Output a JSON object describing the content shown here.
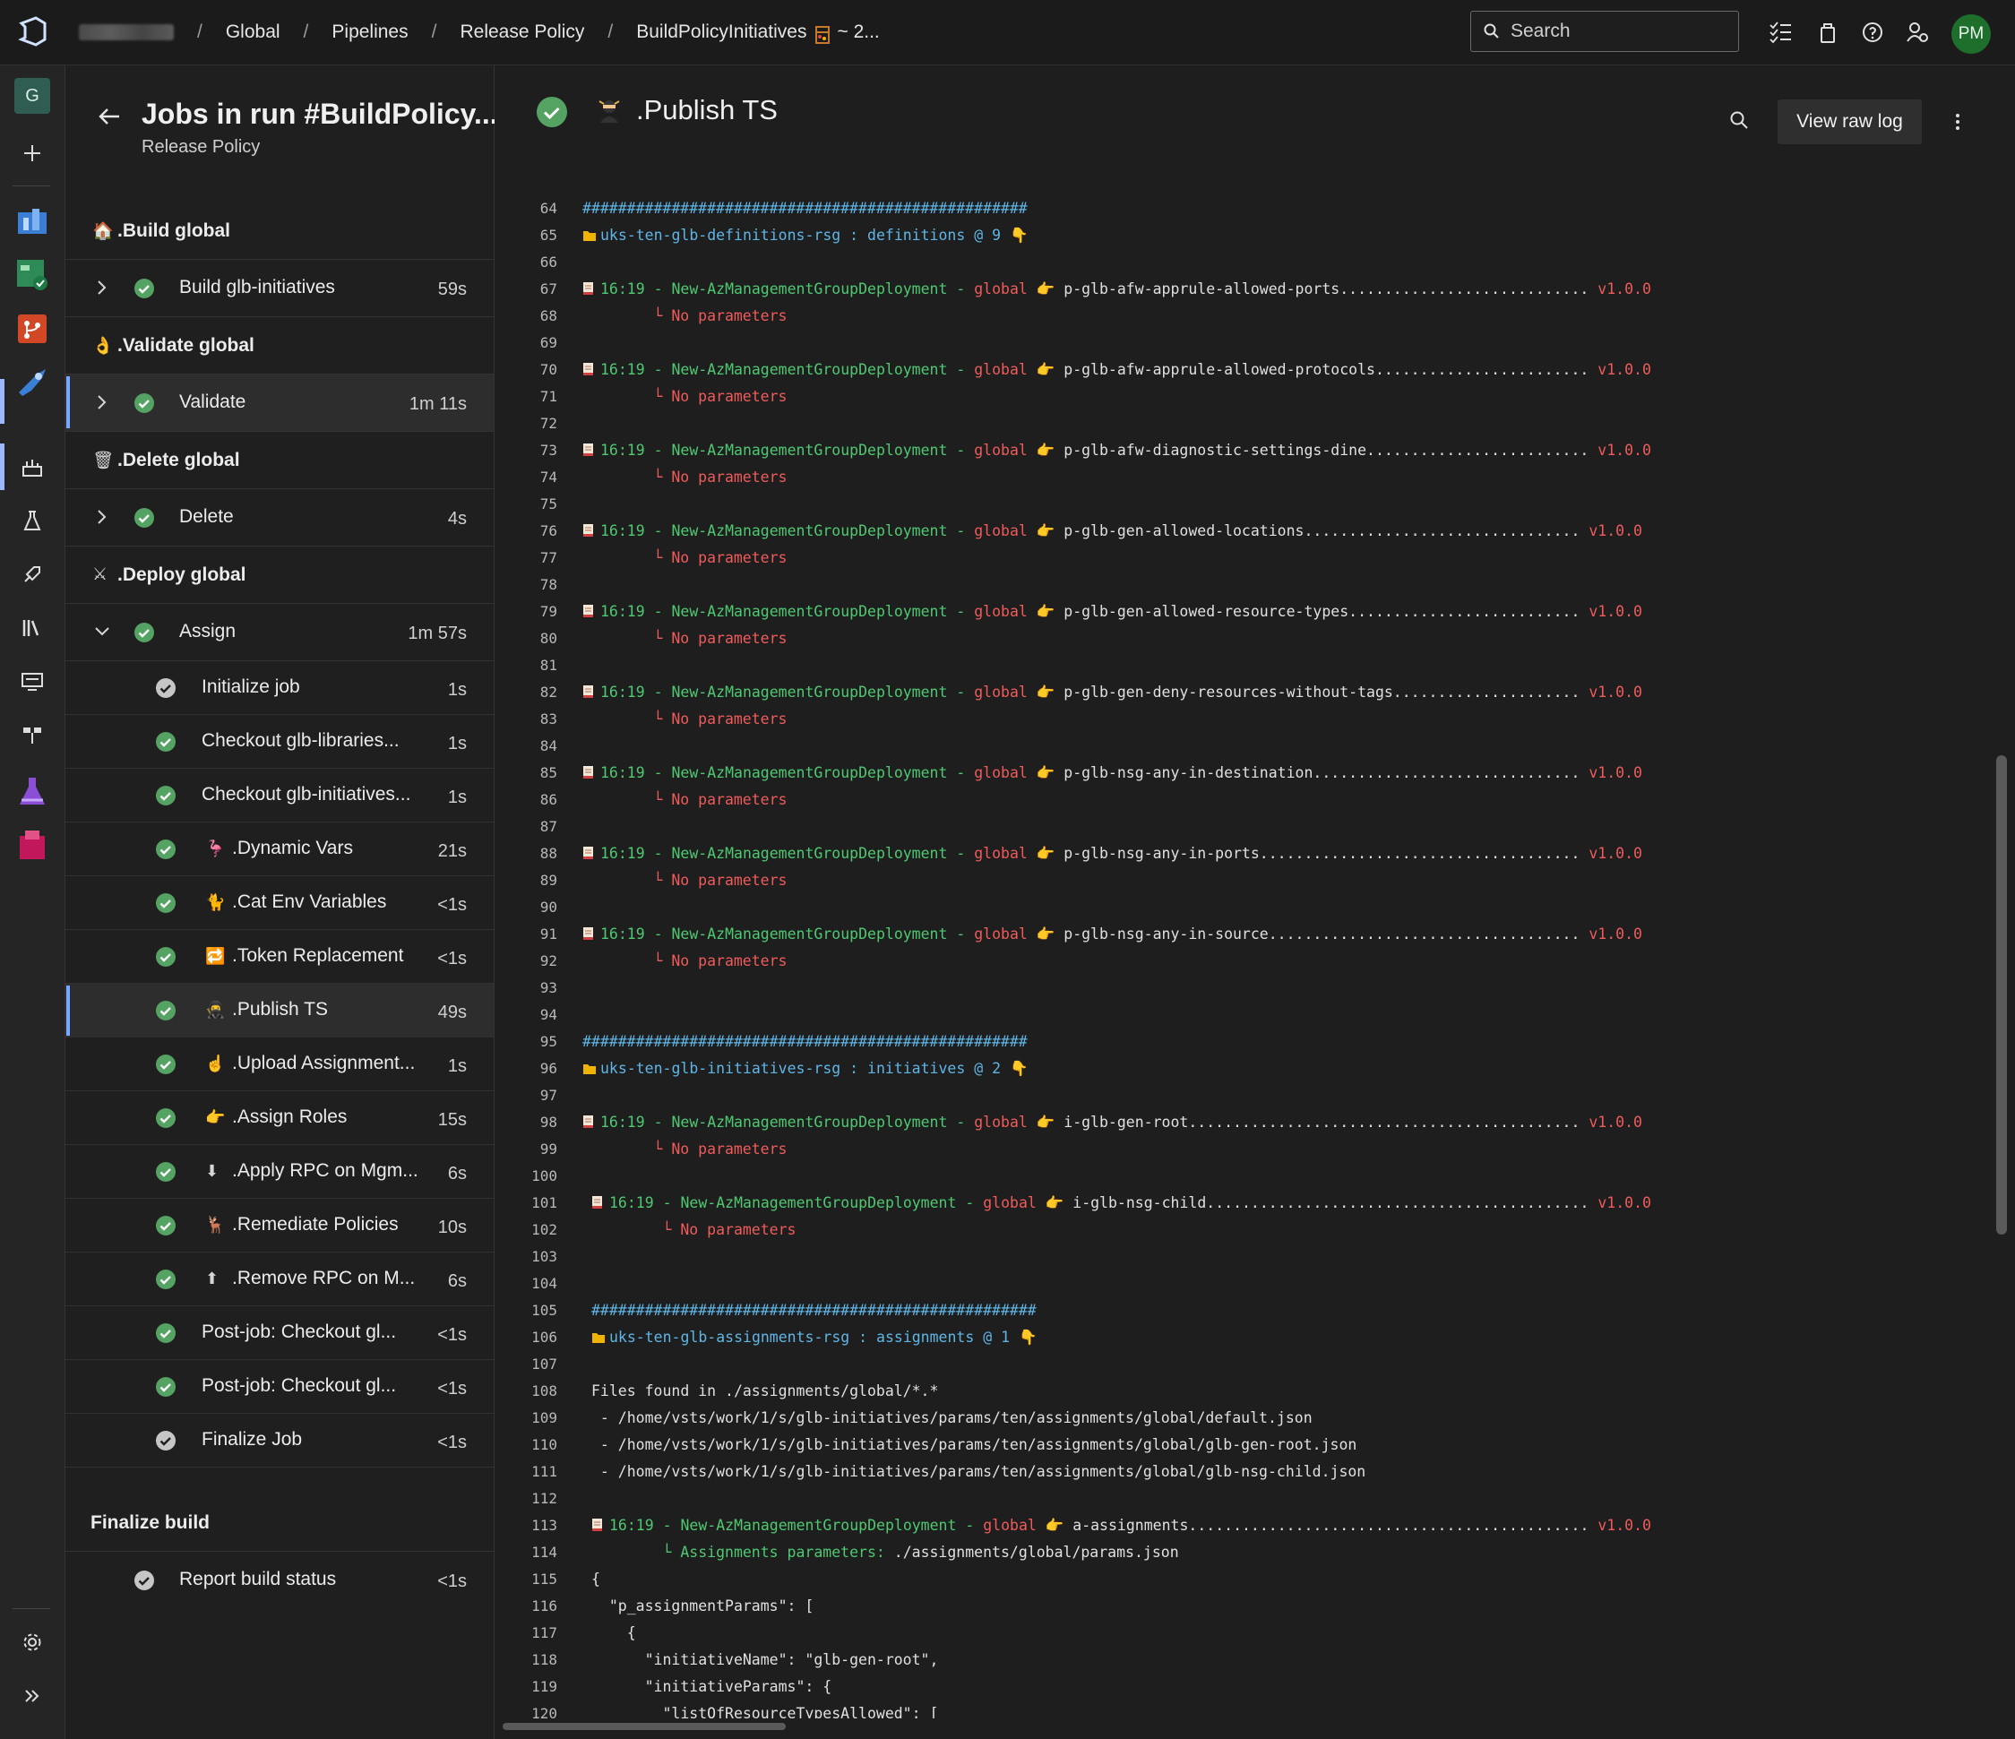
{
  "topbar": {
    "breadcrumbs": [
      "Global",
      "Pipelines",
      "Release Policy",
      "BuildPolicyInitiatives",
      "~ 2..."
    ],
    "search_placeholder": "Search",
    "avatar_initials": "PM",
    "icons": [
      "azure-devops-logo-icon",
      "task-list-icon",
      "shopping-bag-icon",
      "help-icon",
      "user-settings-icon"
    ]
  },
  "rail": {
    "project_initial": "G",
    "icons": [
      "add-icon",
      "overview-icon",
      "boards-icon",
      "repos-icon",
      "pipelines-icon",
      "pipeline-runs-icon",
      "environments-icon",
      "releases-icon",
      "library-icon",
      "task-groups-icon",
      "deployment-groups-icon",
      "test-plans-icon",
      "artifacts-icon",
      "settings-icon",
      "expand-icon"
    ]
  },
  "jobs": {
    "title": "Jobs in run #BuildPolicy...",
    "subtitle": "Release Policy",
    "stages": [
      {
        "emoji": "🏠",
        "label": ".Build global"
      },
      {
        "emoji": "👌",
        "label": ".Validate global"
      },
      {
        "emoji": "🗑",
        "label": ".Delete global"
      },
      {
        "emoji": "⚔",
        "label": ".Deploy global"
      },
      {
        "emoji": "",
        "label": "Finalize build"
      }
    ],
    "job_rows": [
      {
        "label": "Build glb-initiatives",
        "duration": "59s"
      },
      {
        "label": "Validate",
        "duration": "1m 11s"
      },
      {
        "label": "Delete",
        "duration": "4s"
      },
      {
        "label": "Assign",
        "duration": "1m 57s"
      },
      {
        "label": "Report build status",
        "duration": "<1s"
      }
    ],
    "steps": [
      {
        "label": "Initialize job",
        "duration": "1s",
        "icon": ""
      },
      {
        "label": "Checkout glb-libraries...",
        "duration": "1s",
        "icon": ""
      },
      {
        "label": "Checkout glb-initiatives...",
        "duration": "1s",
        "icon": ""
      },
      {
        "label": ".Dynamic Vars",
        "duration": "21s",
        "icon": "flamingo-icon"
      },
      {
        "label": ".Cat Env Variables",
        "duration": "<1s",
        "icon": "cat-icon"
      },
      {
        "label": ".Token Replacement",
        "duration": "<1s",
        "icon": "repeat-icon"
      },
      {
        "label": ".Publish TS",
        "duration": "49s",
        "icon": "ninja-icon"
      },
      {
        "label": ".Upload Assignment...",
        "duration": "1s",
        "icon": "hand-icon"
      },
      {
        "label": ".Assign Roles",
        "duration": "15s",
        "icon": "pointing-hand-icon"
      },
      {
        "label": ".Apply RPC on Mgm...",
        "duration": "6s",
        "icon": "down-arrow-icon"
      },
      {
        "label": ".Remediate Policies",
        "duration": "10s",
        "icon": "deer-icon"
      },
      {
        "label": ".Remove RPC on M...",
        "duration": "6s",
        "icon": "up-arrow-icon"
      },
      {
        "label": "Post-job: Checkout gl...",
        "duration": "<1s",
        "icon": ""
      },
      {
        "label": "Post-job: Checkout gl...",
        "duration": "<1s",
        "icon": ""
      },
      {
        "label": "Finalize Job",
        "duration": "<1s",
        "icon": ""
      }
    ]
  },
  "log": {
    "title": ".Publish TS",
    "raw_button": "View raw log",
    "colors": {
      "hash": "#5fb6e6",
      "green": "#4ec971",
      "red": "#ef5b5b"
    },
    "lines": [
      {
        "n": "64",
        "segs": [
          {
            "c": "hash",
            "t": "##################################################"
          }
        ]
      },
      {
        "n": "65",
        "icon": "folder",
        "segs": [
          {
            "c": "cyan",
            "t": "uks-ten-glb-definitions-rsg : definitions @ 9 👇"
          }
        ]
      },
      {
        "n": "66",
        "segs": []
      },
      {
        "n": "67",
        "icon": "scroll",
        "segs": [
          {
            "c": "green",
            "t": "16:19 - New-AzManagementGroupDeployment - "
          },
          {
            "c": "red",
            "t": "global"
          },
          {
            "c": "white",
            "t": " 👉 p-glb-afw-apprule-allowed-ports............................ "
          },
          {
            "c": "red",
            "t": "v1.0.0"
          }
        ]
      },
      {
        "n": "68",
        "segs": [
          {
            "c": "red",
            "t": "        └ No parameters"
          }
        ]
      },
      {
        "n": "69",
        "segs": []
      },
      {
        "n": "70",
        "icon": "scroll",
        "segs": [
          {
            "c": "green",
            "t": "16:19 - New-AzManagementGroupDeployment - "
          },
          {
            "c": "red",
            "t": "global"
          },
          {
            "c": "white",
            "t": " 👉 p-glb-afw-apprule-allowed-protocols........................ "
          },
          {
            "c": "red",
            "t": "v1.0.0"
          }
        ]
      },
      {
        "n": "71",
        "segs": [
          {
            "c": "red",
            "t": "        └ No parameters"
          }
        ]
      },
      {
        "n": "72",
        "segs": []
      },
      {
        "n": "73",
        "icon": "scroll",
        "segs": [
          {
            "c": "green",
            "t": "16:19 - New-AzManagementGroupDeployment - "
          },
          {
            "c": "red",
            "t": "global"
          },
          {
            "c": "white",
            "t": " 👉 p-glb-afw-diagnostic-settings-dine......................... "
          },
          {
            "c": "red",
            "t": "v1.0.0"
          }
        ]
      },
      {
        "n": "74",
        "segs": [
          {
            "c": "red",
            "t": "        └ No parameters"
          }
        ]
      },
      {
        "n": "75",
        "segs": []
      },
      {
        "n": "76",
        "icon": "scroll",
        "segs": [
          {
            "c": "green",
            "t": "16:19 - New-AzManagementGroupDeployment - "
          },
          {
            "c": "red",
            "t": "global"
          },
          {
            "c": "white",
            "t": " 👉 p-glb-gen-allowed-locations............................... "
          },
          {
            "c": "red",
            "t": "v1.0.0"
          }
        ]
      },
      {
        "n": "77",
        "segs": [
          {
            "c": "red",
            "t": "        └ No parameters"
          }
        ]
      },
      {
        "n": "78",
        "segs": []
      },
      {
        "n": "79",
        "icon": "scroll",
        "segs": [
          {
            "c": "green",
            "t": "16:19 - New-AzManagementGroupDeployment - "
          },
          {
            "c": "red",
            "t": "global"
          },
          {
            "c": "white",
            "t": " 👉 p-glb-gen-allowed-resource-types.......................... "
          },
          {
            "c": "red",
            "t": "v1.0.0"
          }
        ]
      },
      {
        "n": "80",
        "segs": [
          {
            "c": "red",
            "t": "        └ No parameters"
          }
        ]
      },
      {
        "n": "81",
        "segs": []
      },
      {
        "n": "82",
        "icon": "scroll",
        "segs": [
          {
            "c": "green",
            "t": "16:19 - New-AzManagementGroupDeployment - "
          },
          {
            "c": "red",
            "t": "global"
          },
          {
            "c": "white",
            "t": " 👉 p-glb-gen-deny-resources-without-tags..................... "
          },
          {
            "c": "red",
            "t": "v1.0.0"
          }
        ]
      },
      {
        "n": "83",
        "segs": [
          {
            "c": "red",
            "t": "        └ No parameters"
          }
        ]
      },
      {
        "n": "84",
        "segs": []
      },
      {
        "n": "85",
        "icon": "scroll",
        "segs": [
          {
            "c": "green",
            "t": "16:19 - New-AzManagementGroupDeployment - "
          },
          {
            "c": "red",
            "t": "global"
          },
          {
            "c": "white",
            "t": " 👉 p-glb-nsg-any-in-destination.............................. "
          },
          {
            "c": "red",
            "t": "v1.0.0"
          }
        ]
      },
      {
        "n": "86",
        "segs": [
          {
            "c": "red",
            "t": "        └ No parameters"
          }
        ]
      },
      {
        "n": "87",
        "segs": []
      },
      {
        "n": "88",
        "icon": "scroll",
        "segs": [
          {
            "c": "green",
            "t": "16:19 - New-AzManagementGroupDeployment - "
          },
          {
            "c": "red",
            "t": "global"
          },
          {
            "c": "white",
            "t": " 👉 p-glb-nsg-any-in-ports.................................... "
          },
          {
            "c": "red",
            "t": "v1.0.0"
          }
        ]
      },
      {
        "n": "89",
        "segs": [
          {
            "c": "red",
            "t": "        └ No parameters"
          }
        ]
      },
      {
        "n": "90",
        "segs": []
      },
      {
        "n": "91",
        "icon": "scroll",
        "segs": [
          {
            "c": "green",
            "t": "16:19 - New-AzManagementGroupDeployment - "
          },
          {
            "c": "red",
            "t": "global"
          },
          {
            "c": "white",
            "t": " 👉 p-glb-nsg-any-in-source................................... "
          },
          {
            "c": "red",
            "t": "v1.0.0"
          }
        ]
      },
      {
        "n": "92",
        "segs": [
          {
            "c": "red",
            "t": "        └ No parameters"
          }
        ]
      },
      {
        "n": "93",
        "segs": []
      },
      {
        "n": "94",
        "segs": []
      },
      {
        "n": "95",
        "segs": [
          {
            "c": "hash",
            "t": "##################################################"
          }
        ]
      },
      {
        "n": "96",
        "icon": "folder",
        "segs": [
          {
            "c": "cyan",
            "t": "uks-ten-glb-initiatives-rsg : initiatives @ 2 👇"
          }
        ]
      },
      {
        "n": "97",
        "segs": []
      },
      {
        "n": "98",
        "icon": "scroll",
        "segs": [
          {
            "c": "green",
            "t": "16:19 - New-AzManagementGroupDeployment - "
          },
          {
            "c": "red",
            "t": "global"
          },
          {
            "c": "white",
            "t": " 👉 i-glb-gen-root............................................ "
          },
          {
            "c": "red",
            "t": "v1.0.0"
          }
        ]
      },
      {
        "n": "99",
        "segs": [
          {
            "c": "red",
            "t": "        └ No parameters"
          }
        ]
      },
      {
        "n": "100",
        "segs": []
      },
      {
        "n": "101",
        "icon": "scroll",
        "indent": 1,
        "segs": [
          {
            "c": "green",
            "t": "16:19 - New-AzManagementGroupDeployment - "
          },
          {
            "c": "red",
            "t": "global"
          },
          {
            "c": "white",
            "t": " 👉 i-glb-nsg-child........................................... "
          },
          {
            "c": "red",
            "t": "v1.0.0"
          }
        ]
      },
      {
        "n": "102",
        "indent": 1,
        "segs": [
          {
            "c": "red",
            "t": "        └ No parameters"
          }
        ]
      },
      {
        "n": "103",
        "segs": []
      },
      {
        "n": "104",
        "segs": []
      },
      {
        "n": "105",
        "indent": 1,
        "segs": [
          {
            "c": "hash",
            "t": "##################################################"
          }
        ]
      },
      {
        "n": "106",
        "icon": "folder",
        "indent": 1,
        "segs": [
          {
            "c": "cyan",
            "t": "uks-ten-glb-assignments-rsg : assignments @ 1 👇"
          }
        ]
      },
      {
        "n": "107",
        "segs": []
      },
      {
        "n": "108",
        "indent": 1,
        "segs": [
          {
            "c": "white",
            "t": "Files found in ./assignments/global/*.*"
          }
        ]
      },
      {
        "n": "109",
        "indent": 1,
        "segs": [
          {
            "c": "white",
            "t": " - /home/vsts/work/1/s/glb-initiatives/params/ten/assignments/global/default.json"
          }
        ]
      },
      {
        "n": "110",
        "indent": 1,
        "segs": [
          {
            "c": "white",
            "t": " - /home/vsts/work/1/s/glb-initiatives/params/ten/assignments/global/glb-gen-root.json"
          }
        ]
      },
      {
        "n": "111",
        "indent": 1,
        "segs": [
          {
            "c": "white",
            "t": " - /home/vsts/work/1/s/glb-initiatives/params/ten/assignments/global/glb-nsg-child.json"
          }
        ]
      },
      {
        "n": "112",
        "segs": []
      },
      {
        "n": "113",
        "icon": "scroll",
        "indent": 1,
        "segs": [
          {
            "c": "green",
            "t": "16:19 - New-AzManagementGroupDeployment - "
          },
          {
            "c": "red",
            "t": "global"
          },
          {
            "c": "white",
            "t": " 👉 a-assignments............................................. "
          },
          {
            "c": "red",
            "t": "v1.0.0"
          }
        ]
      },
      {
        "n": "114",
        "indent": 1,
        "segs": [
          {
            "c": "green",
            "t": "        └ Assignments parameters: "
          },
          {
            "c": "white",
            "t": "./assignments/global/params.json"
          }
        ]
      },
      {
        "n": "115",
        "indent": 1,
        "segs": [
          {
            "c": "white",
            "t": "{"
          }
        ]
      },
      {
        "n": "116",
        "indent": 1,
        "segs": [
          {
            "c": "white",
            "t": "  \"p_assignmentParams\": ["
          }
        ]
      },
      {
        "n": "117",
        "indent": 1,
        "segs": [
          {
            "c": "white",
            "t": "    {"
          }
        ]
      },
      {
        "n": "118",
        "indent": 1,
        "segs": [
          {
            "c": "white",
            "t": "      \"initiativeName\": \"glb-gen-root\","
          }
        ]
      },
      {
        "n": "119",
        "indent": 1,
        "segs": [
          {
            "c": "white",
            "t": "      \"initiativeParams\": {"
          }
        ]
      },
      {
        "n": "120",
        "indent": 1,
        "segs": [
          {
            "c": "white",
            "t": "        \"listOfResourceTypesAllowed\": ["
          }
        ]
      }
    ]
  }
}
